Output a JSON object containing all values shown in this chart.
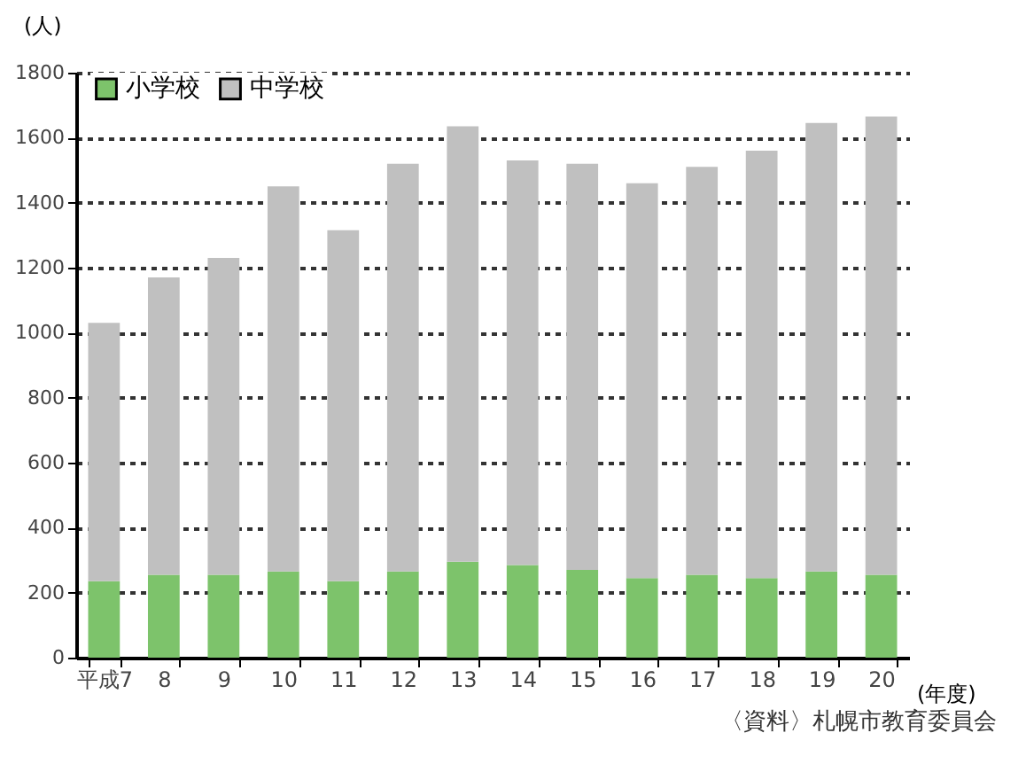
{
  "chart_data": {
    "type": "bar",
    "stacked": true,
    "ylabel": "(人)",
    "xlabel": "(年度)",
    "annotations": [
      "〈資料〉札幌市教育委員会"
    ],
    "categories": [
      "平成7",
      "8",
      "9",
      "10",
      "11",
      "12",
      "13",
      "14",
      "15",
      "16",
      "17",
      "18",
      "19",
      "20"
    ],
    "series": [
      {
        "name": "小学校",
        "color": "#7dc36b",
        "values": [
          235,
          255,
          255,
          265,
          235,
          265,
          295,
          285,
          270,
          245,
          255,
          245,
          265,
          255
        ]
      },
      {
        "name": "中学校",
        "color": "#c0c0c0",
        "values": [
          795,
          915,
          975,
          1185,
          1080,
          1255,
          1340,
          1245,
          1250,
          1215,
          1255,
          1315,
          1380,
          1410
        ]
      }
    ],
    "ylim": [
      0,
      1800
    ],
    "yticks": [
      0,
      200,
      400,
      600,
      800,
      1000,
      1200,
      1400,
      1600,
      1800
    ],
    "grid": "y",
    "legend": "top left"
  }
}
